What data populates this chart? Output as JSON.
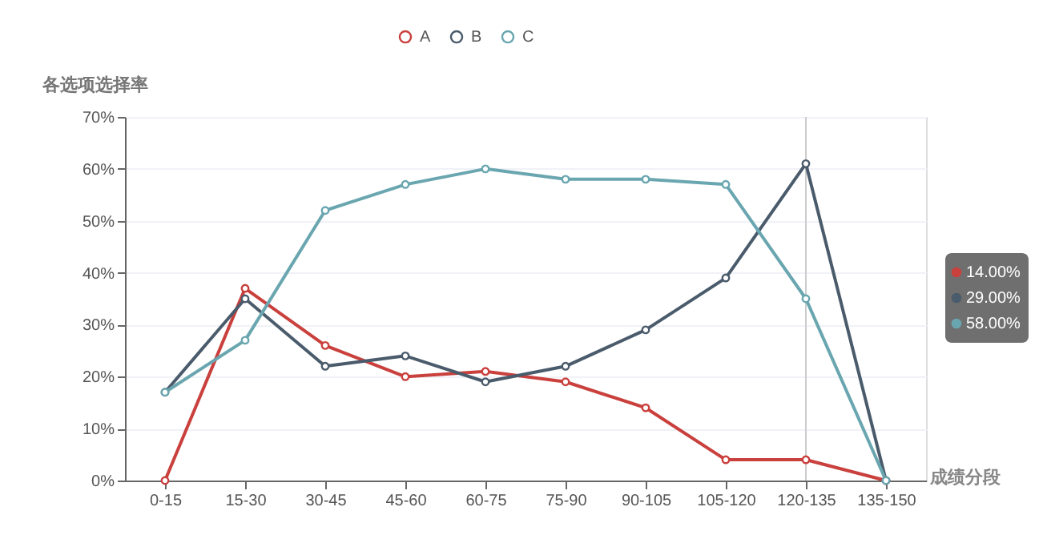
{
  "chart_data": {
    "type": "line",
    "xlabel": "成绩分段",
    "ylabel": "各选项选择率",
    "categories": [
      "0-15",
      "15-30",
      "30-45",
      "45-60",
      "60-75",
      "75-90",
      "90-105",
      "105-120",
      "120-135",
      "135-150"
    ],
    "series": [
      {
        "name": "A",
        "color": "#c9403d",
        "values": [
          0,
          37,
          26,
          20,
          21,
          19,
          14,
          4,
          4,
          0
        ]
      },
      {
        "name": "B",
        "color": "#4a5b6b",
        "values": [
          17,
          35,
          22,
          24,
          19,
          22,
          29,
          39,
          61,
          0
        ]
      },
      {
        "name": "C",
        "color": "#6aa6b0",
        "values": [
          17,
          27,
          52,
          57,
          60,
          58,
          58,
          57,
          35,
          0
        ]
      }
    ],
    "ylim": [
      0,
      70
    ],
    "yticks": [
      {
        "value": 0,
        "label": "0%"
      },
      {
        "value": 10,
        "label": "10%"
      },
      {
        "value": 20,
        "label": "20%"
      },
      {
        "value": 30,
        "label": "30%"
      },
      {
        "value": 40,
        "label": "40%"
      },
      {
        "value": 50,
        "label": "50%"
      },
      {
        "value": 60,
        "label": "60%"
      },
      {
        "value": 70,
        "label": "70%"
      }
    ],
    "ref_lines": [
      {
        "axis": "x",
        "value": "120-135",
        "color": "#cccccc"
      }
    ],
    "annotations": [
      "14.00%",
      "29.00%",
      "58.00%"
    ],
    "grid": "y",
    "legend": "top",
    "marker": "circle",
    "line_style": "solid"
  }
}
